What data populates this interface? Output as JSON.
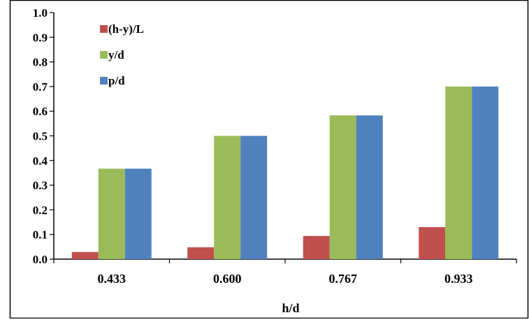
{
  "chart_data": {
    "type": "bar",
    "categories": [
      "0.433",
      "0.600",
      "0.767",
      "0.933"
    ],
    "series": [
      {
        "name": "(h-y)/L",
        "color": "#c0504d",
        "values": [
          0.029,
          0.048,
          0.094,
          0.13
        ]
      },
      {
        "name": "y/d",
        "color": "#9bbb59",
        "values": [
          0.367,
          0.5,
          0.583,
          0.7
        ]
      },
      {
        "name": "p/d",
        "color": "#4f81bd",
        "values": [
          0.367,
          0.5,
          0.583,
          0.7
        ]
      }
    ],
    "title": "",
    "xlabel": "h/d",
    "ylabel": "",
    "ylim": [
      0,
      1.0
    ],
    "yticks": [
      "0.0",
      "0.1",
      "0.2",
      "0.3",
      "0.4",
      "0.5",
      "0.6",
      "0.7",
      "0.8",
      "0.9",
      "1.0"
    ],
    "grid": false,
    "legend_placement": "top-left"
  }
}
